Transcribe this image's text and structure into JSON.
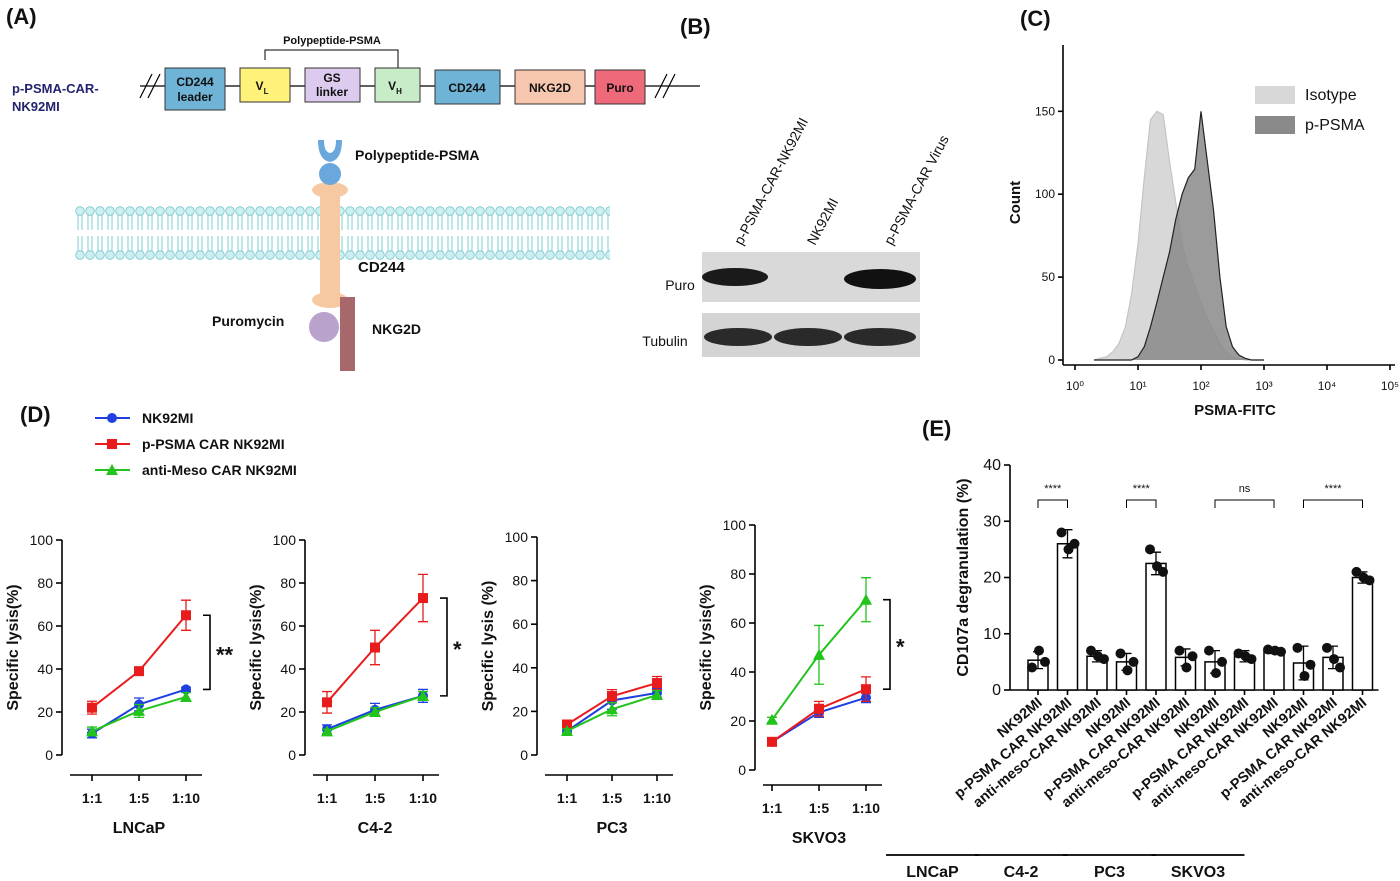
{
  "panel_labels": [
    "(A)",
    "(B)",
    "(C)",
    "(D)",
    "(E)"
  ],
  "diagram": {
    "construct_name": [
      "p-PSMA-CAR-",
      "NK92MI"
    ],
    "bracket_label": "Polypeptide-PSMA",
    "segments": [
      {
        "lines": [
          "CD244",
          "leader"
        ]
      },
      {
        "main": "V",
        "sub": "L"
      },
      {
        "lines": [
          "GS",
          "linker"
        ]
      },
      {
        "main": "V",
        "sub": "H"
      },
      {
        "lines": [
          "CD244"
        ]
      },
      {
        "lines": [
          "NKG2D"
        ]
      },
      {
        "lines": [
          "Puro"
        ]
      }
    ],
    "labels": {
      "ligand": "Polypeptide-PSMA",
      "receptor": "CD244",
      "marker": "Puromycin",
      "signal": "NKG2D"
    }
  },
  "blot": {
    "lanes": [
      "p-PSMA-CAR-NK92MI",
      "NK92MI",
      "p-PSMA-CAR Virus"
    ],
    "rows": [
      "Puro",
      "Tubulin"
    ]
  },
  "legend": {
    "entries": [
      {
        "name": "NK92MI",
        "color": "#1f3fe0",
        "marker": "circle"
      },
      {
        "name": "p-PSMA CAR NK92MI",
        "color": "#e81c1c",
        "marker": "square"
      },
      {
        "name": "anti-Meso CAR NK92MI",
        "color": "#22c41c",
        "marker": "triangle"
      }
    ]
  },
  "chart_data": [
    {
      "type": "area",
      "x_label": "PSMA-FITC",
      "y_label": "Count",
      "log_x": true,
      "xlim": [
        1,
        100000
      ],
      "xticks": [
        {
          "value": 1,
          "label": "10⁰"
        },
        {
          "value": 10,
          "label": "10¹"
        },
        {
          "value": 100,
          "label": "10²"
        },
        {
          "value": 1000,
          "label": "10³"
        },
        {
          "value": 10000,
          "label": "10⁴"
        },
        {
          "value": 100000,
          "label": "10⁵"
        }
      ],
      "ylim": [
        0,
        190
      ],
      "yticks": [
        0,
        50,
        100,
        150
      ],
      "legend_position": "upper right",
      "x": [
        2,
        2.5,
        3.2,
        4,
        5,
        6.3,
        7.9,
        10,
        12.6,
        15.8,
        20,
        25.1,
        31.6,
        39.8,
        50.1,
        63.1,
        79.4,
        100,
        125.9,
        158.5,
        199.5,
        251.2,
        316.2,
        398.1,
        501.2,
        631,
        794.3,
        1000
      ],
      "series": [
        {
          "name": "Isotype",
          "color": "#d8d8d8",
          "values": [
            0,
            1,
            2,
            5,
            10,
            20,
            40,
            70,
            110,
            145,
            150,
            148,
            120,
            95,
            70,
            55,
            45,
            35,
            25,
            18,
            10,
            5,
            2,
            1,
            0,
            0,
            0,
            0
          ]
        },
        {
          "name": "p-PSMA",
          "color": "#8a8a8a",
          "values": [
            0,
            0,
            0,
            0,
            0,
            0,
            0,
            2,
            8,
            20,
            35,
            50,
            65,
            85,
            100,
            110,
            115,
            150,
            120,
            90,
            50,
            20,
            8,
            3,
            1,
            0,
            0,
            0
          ]
        }
      ]
    },
    {
      "type": "line",
      "x_label": "LNCaP",
      "y_label": "Specific lysis(%)",
      "categories": [
        "1:1",
        "1:5",
        "1:10"
      ],
      "ylim": [
        0,
        100
      ],
      "yticks": [
        0,
        20,
        40,
        60,
        80,
        100
      ],
      "significance": "**",
      "series": [
        {
          "color": "#1f3fe0",
          "marker": "circle",
          "values": [
            10,
            23.5,
            30.5
          ],
          "errors": [
            2,
            3,
            1
          ]
        },
        {
          "color": "#e81c1c",
          "marker": "square",
          "values": [
            22,
            39,
            65
          ],
          "errors": [
            3,
            1,
            7
          ]
        },
        {
          "color": "#22c41c",
          "marker": "triangle",
          "values": [
            11,
            20.5,
            27
          ],
          "errors": [
            2,
            3,
            2
          ]
        }
      ]
    },
    {
      "type": "line",
      "x_label": "C4-2",
      "y_label": "Specific lysis(%)",
      "categories": [
        "1:1",
        "1:5",
        "1:10"
      ],
      "ylim": [
        0,
        100
      ],
      "yticks": [
        0,
        20,
        40,
        60,
        80,
        100
      ],
      "significance": "*",
      "series": [
        {
          "color": "#1f3fe0",
          "marker": "circle",
          "values": [
            12,
            21,
            27.5
          ],
          "errors": [
            2,
            3,
            3
          ]
        },
        {
          "color": "#e81c1c",
          "marker": "square",
          "values": [
            24.5,
            50,
            73
          ],
          "errors": [
            5,
            8,
            11
          ]
        },
        {
          "color": "#22c41c",
          "marker": "triangle",
          "values": [
            11,
            20,
            27.5
          ],
          "errors": [
            1,
            2,
            2
          ]
        }
      ]
    },
    {
      "type": "line",
      "x_label": "PC3",
      "y_label": "Specific lysis (%)",
      "categories": [
        "1:1",
        "1:5",
        "1:10"
      ],
      "ylim": [
        0,
        100
      ],
      "yticks": [
        0,
        20,
        40,
        60,
        80,
        100
      ],
      "series": [
        {
          "color": "#1f3fe0",
          "marker": "circle",
          "values": [
            11,
            25,
            28.5
          ],
          "errors": [
            1,
            4,
            2
          ]
        },
        {
          "color": "#e81c1c",
          "marker": "square",
          "values": [
            14,
            27,
            33
          ],
          "errors": [
            1,
            3,
            3
          ]
        },
        {
          "color": "#22c41c",
          "marker": "triangle",
          "values": [
            11,
            21,
            27.5
          ],
          "errors": [
            1,
            3,
            2
          ]
        }
      ]
    },
    {
      "type": "line",
      "x_label": "SKVO3",
      "y_label": "Specific lysis(%)",
      "categories": [
        "1:1",
        "1:5",
        "1:10"
      ],
      "ylim": [
        0,
        100
      ],
      "yticks": [
        0,
        20,
        40,
        60,
        80,
        100
      ],
      "significance": "*",
      "series": [
        {
          "color": "#1f3fe0",
          "marker": "circle",
          "values": [
            11.5,
            23.5,
            29.5
          ],
          "errors": [
            1,
            2,
            2
          ]
        },
        {
          "color": "#e81c1c",
          "marker": "square",
          "values": [
            11.5,
            25,
            33
          ],
          "errors": [
            1,
            3,
            5
          ]
        },
        {
          "color": "#22c41c",
          "marker": "triangle",
          "values": [
            20.5,
            47,
            69.5
          ],
          "errors": [
            1,
            12,
            9
          ]
        }
      ]
    },
    {
      "type": "bar",
      "y_label": "CD107a degranulation (%)",
      "color": "#ffffff",
      "ylim": [
        0,
        40
      ],
      "yticks": [
        0,
        10,
        20,
        30,
        40
      ],
      "categories": [
        "NK92MI",
        "p-PSMA CAR NK92MI",
        "anti-meso-CAR NK92MI",
        "NK92MI",
        "p-PSMA CAR NK92MI",
        "anti-meso-CAR NK92MI",
        "NK92MI",
        "p-PSMA CAR NK92MI",
        "anti-meso-CAR NK92MI",
        "NK92MI",
        "p-PSMA CAR NK92MI",
        "anti-meso-CAR NK92MI"
      ],
      "values": [
        5.3,
        26,
        6,
        5,
        22.5,
        5.8,
        5,
        6,
        7,
        4.8,
        5.8,
        20
      ],
      "errors": [
        1.5,
        2.5,
        1,
        1.5,
        2,
        1.5,
        2,
        1,
        0.5,
        3,
        2,
        1
      ],
      "points": [
        [
          4,
          7,
          5
        ],
        [
          28,
          25,
          26
        ],
        [
          7,
          6,
          5.5
        ],
        [
          6.5,
          3.5,
          5
        ],
        [
          25,
          22,
          21
        ],
        [
          7,
          4,
          6
        ],
        [
          7,
          3,
          5
        ],
        [
          6.5,
          6,
          5.5
        ],
        [
          7.2,
          7,
          6.8
        ],
        [
          7.5,
          2.5,
          4.5
        ],
        [
          7.5,
          5.5,
          4
        ],
        [
          21,
          20,
          19.5
        ]
      ],
      "groups": [
        {
          "label": "LNCaP",
          "from": 0,
          "to": 2
        },
        {
          "label": "C4-2",
          "from": 3,
          "to": 5
        },
        {
          "label": "PC3",
          "from": 6,
          "to": 8
        },
        {
          "label": "SKVO3",
          "from": 9,
          "to": 11
        }
      ],
      "comparisons": [
        {
          "label": "****",
          "from": 0,
          "to": 1
        },
        {
          "label": "****",
          "from": 3,
          "to": 4
        },
        {
          "label": "ns",
          "from": 6,
          "to": 8
        },
        {
          "label": "****",
          "from": 9,
          "to": 11
        }
      ]
    }
  ]
}
